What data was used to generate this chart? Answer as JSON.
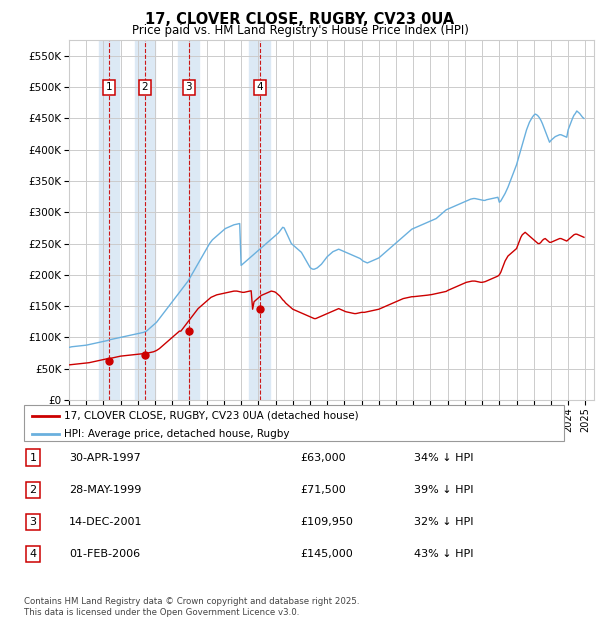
{
  "title": "17, CLOVER CLOSE, RUGBY, CV23 0UA",
  "subtitle": "Price paid vs. HM Land Registry's House Price Index (HPI)",
  "ylabel_ticks": [
    "£0",
    "£50K",
    "£100K",
    "£150K",
    "£200K",
    "£250K",
    "£300K",
    "£350K",
    "£400K",
    "£450K",
    "£500K",
    "£550K"
  ],
  "ytick_values": [
    0,
    50000,
    100000,
    150000,
    200000,
    250000,
    300000,
    350000,
    400000,
    450000,
    500000,
    550000
  ],
  "ylim": [
    0,
    575000
  ],
  "xlim_start": 1995.0,
  "xlim_end": 2025.5,
  "purchases": [
    {
      "label": "1",
      "date_str": "30-APR-1997",
      "year": 1997.33,
      "price": 63000,
      "pct": "34%",
      "dir": "↓"
    },
    {
      "label": "2",
      "date_str": "28-MAY-1999",
      "year": 1999.41,
      "price": 71500,
      "pct": "39%",
      "dir": "↓"
    },
    {
      "label": "3",
      "date_str": "14-DEC-2001",
      "year": 2001.95,
      "price": 109950,
      "pct": "32%",
      "dir": "↓"
    },
    {
      "label": "4",
      "date_str": "01-FEB-2006",
      "year": 2006.08,
      "price": 145000,
      "pct": "43%",
      "dir": "↓"
    }
  ],
  "hpi_color": "#6ab0de",
  "price_color": "#cc0000",
  "vline_color": "#cc0000",
  "vband_color": "#dce9f5",
  "box_edge_color": "#cc0000",
  "footnote": "Contains HM Land Registry data © Crown copyright and database right 2025.\nThis data is licensed under the Open Government Licence v3.0.",
  "legend_entries": [
    "17, CLOVER CLOSE, RUGBY, CV23 0UA (detached house)",
    "HPI: Average price, detached house, Rugby"
  ],
  "hpi_years": [
    1995.0,
    1995.083,
    1995.167,
    1995.25,
    1995.333,
    1995.417,
    1995.5,
    1995.583,
    1995.667,
    1995.75,
    1995.833,
    1995.917,
    1996.0,
    1996.083,
    1996.167,
    1996.25,
    1996.333,
    1996.417,
    1996.5,
    1996.583,
    1996.667,
    1996.75,
    1996.833,
    1996.917,
    1997.0,
    1997.083,
    1997.167,
    1997.25,
    1997.333,
    1997.417,
    1997.5,
    1997.583,
    1997.667,
    1997.75,
    1997.833,
    1997.917,
    1998.0,
    1998.083,
    1998.167,
    1998.25,
    1998.333,
    1998.417,
    1998.5,
    1998.583,
    1998.667,
    1998.75,
    1998.833,
    1998.917,
    1999.0,
    1999.083,
    1999.167,
    1999.25,
    1999.333,
    1999.417,
    1999.5,
    1999.583,
    1999.667,
    1999.75,
    1999.833,
    1999.917,
    2000.0,
    2000.083,
    2000.167,
    2000.25,
    2000.333,
    2000.417,
    2000.5,
    2000.583,
    2000.667,
    2000.75,
    2000.833,
    2000.917,
    2001.0,
    2001.083,
    2001.167,
    2001.25,
    2001.333,
    2001.417,
    2001.5,
    2001.583,
    2001.667,
    2001.75,
    2001.833,
    2001.917,
    2002.0,
    2002.083,
    2002.167,
    2002.25,
    2002.333,
    2002.417,
    2002.5,
    2002.583,
    2002.667,
    2002.75,
    2002.833,
    2002.917,
    2003.0,
    2003.083,
    2003.167,
    2003.25,
    2003.333,
    2003.417,
    2003.5,
    2003.583,
    2003.667,
    2003.75,
    2003.833,
    2003.917,
    2004.0,
    2004.083,
    2004.167,
    2004.25,
    2004.333,
    2004.417,
    2004.5,
    2004.583,
    2004.667,
    2004.75,
    2004.833,
    2004.917,
    2005.0,
    2005.083,
    2005.167,
    2005.25,
    2005.333,
    2005.417,
    2005.5,
    2005.583,
    2005.667,
    2005.75,
    2005.833,
    2005.917,
    2006.0,
    2006.083,
    2006.167,
    2006.25,
    2006.333,
    2006.417,
    2006.5,
    2006.583,
    2006.667,
    2006.75,
    2006.833,
    2006.917,
    2007.0,
    2007.083,
    2007.167,
    2007.25,
    2007.333,
    2007.417,
    2007.5,
    2007.583,
    2007.667,
    2007.75,
    2007.833,
    2007.917,
    2008.0,
    2008.083,
    2008.167,
    2008.25,
    2008.333,
    2008.417,
    2008.5,
    2008.583,
    2008.667,
    2008.75,
    2008.833,
    2008.917,
    2009.0,
    2009.083,
    2009.167,
    2009.25,
    2009.333,
    2009.417,
    2009.5,
    2009.583,
    2009.667,
    2009.75,
    2009.833,
    2009.917,
    2010.0,
    2010.083,
    2010.167,
    2010.25,
    2010.333,
    2010.417,
    2010.5,
    2010.583,
    2010.667,
    2010.75,
    2010.833,
    2010.917,
    2011.0,
    2011.083,
    2011.167,
    2011.25,
    2011.333,
    2011.417,
    2011.5,
    2011.583,
    2011.667,
    2011.75,
    2011.833,
    2011.917,
    2012.0,
    2012.083,
    2012.167,
    2012.25,
    2012.333,
    2012.417,
    2012.5,
    2012.583,
    2012.667,
    2012.75,
    2012.833,
    2012.917,
    2013.0,
    2013.083,
    2013.167,
    2013.25,
    2013.333,
    2013.417,
    2013.5,
    2013.583,
    2013.667,
    2013.75,
    2013.833,
    2013.917,
    2014.0,
    2014.083,
    2014.167,
    2014.25,
    2014.333,
    2014.417,
    2014.5,
    2014.583,
    2014.667,
    2014.75,
    2014.833,
    2014.917,
    2015.0,
    2015.083,
    2015.167,
    2015.25,
    2015.333,
    2015.417,
    2015.5,
    2015.583,
    2015.667,
    2015.75,
    2015.833,
    2015.917,
    2016.0,
    2016.083,
    2016.167,
    2016.25,
    2016.333,
    2016.417,
    2016.5,
    2016.583,
    2016.667,
    2016.75,
    2016.833,
    2016.917,
    2017.0,
    2017.083,
    2017.167,
    2017.25,
    2017.333,
    2017.417,
    2017.5,
    2017.583,
    2017.667,
    2017.75,
    2017.833,
    2017.917,
    2018.0,
    2018.083,
    2018.167,
    2018.25,
    2018.333,
    2018.417,
    2018.5,
    2018.583,
    2018.667,
    2018.75,
    2018.833,
    2018.917,
    2019.0,
    2019.083,
    2019.167,
    2019.25,
    2019.333,
    2019.417,
    2019.5,
    2019.583,
    2019.667,
    2019.75,
    2019.833,
    2019.917,
    2020.0,
    2020.083,
    2020.167,
    2020.25,
    2020.333,
    2020.417,
    2020.5,
    2020.583,
    2020.667,
    2020.75,
    2020.833,
    2020.917,
    2021.0,
    2021.083,
    2021.167,
    2021.25,
    2021.333,
    2021.417,
    2021.5,
    2021.583,
    2021.667,
    2021.75,
    2021.833,
    2021.917,
    2022.0,
    2022.083,
    2022.167,
    2022.25,
    2022.333,
    2022.417,
    2022.5,
    2022.583,
    2022.667,
    2022.75,
    2022.833,
    2022.917,
    2023.0,
    2023.083,
    2023.167,
    2023.25,
    2023.333,
    2023.417,
    2023.5,
    2023.583,
    2023.667,
    2023.75,
    2023.833,
    2023.917,
    2024.0,
    2024.083,
    2024.167,
    2024.25,
    2024.333,
    2024.417,
    2024.5,
    2024.583,
    2024.667,
    2024.75,
    2024.833,
    2024.917
  ],
  "hpi_values": [
    84000,
    84500,
    85000,
    85200,
    85500,
    85800,
    86000,
    86200,
    86500,
    86800,
    87000,
    87200,
    87500,
    88000,
    88500,
    89000,
    89500,
    90000,
    90500,
    91000,
    91500,
    92000,
    92500,
    93000,
    93500,
    94000,
    94500,
    95000,
    96000,
    96500,
    97000,
    97500,
    98000,
    98500,
    99000,
    99500,
    100000,
    100500,
    101000,
    101500,
    102000,
    102500,
    103000,
    103500,
    104000,
    104500,
    105000,
    105500,
    106000,
    106500,
    107000,
    107500,
    108000,
    109000,
    110000,
    112000,
    114000,
    116000,
    118000,
    120000,
    122000,
    124000,
    127000,
    130000,
    133000,
    136000,
    139000,
    142000,
    145000,
    148000,
    151000,
    154000,
    157000,
    160000,
    163000,
    166000,
    169000,
    172000,
    175000,
    178000,
    181000,
    184000,
    187000,
    190000,
    194000,
    198000,
    202000,
    206000,
    210000,
    214000,
    218000,
    222000,
    226000,
    230000,
    234000,
    238000,
    242000,
    246000,
    250000,
    253000,
    256000,
    258000,
    260000,
    262000,
    264000,
    266000,
    268000,
    270000,
    272000,
    274000,
    275000,
    276000,
    277000,
    278000,
    279000,
    280000,
    280500,
    281000,
    281500,
    282000,
    215000,
    217000,
    219000,
    221000,
    223000,
    225000,
    227000,
    229000,
    231000,
    233000,
    235000,
    237000,
    239000,
    241000,
    243000,
    245000,
    247000,
    249000,
    251000,
    253000,
    255000,
    257000,
    259000,
    261000,
    263000,
    265000,
    267000,
    270000,
    273000,
    276000,
    275000,
    270000,
    265000,
    260000,
    255000,
    250000,
    248000,
    246000,
    244000,
    242000,
    240000,
    238000,
    236000,
    232000,
    228000,
    224000,
    220000,
    216000,
    212000,
    210000,
    209000,
    209000,
    210000,
    211000,
    213000,
    215000,
    217000,
    220000,
    223000,
    226000,
    229000,
    231000,
    233000,
    235000,
    237000,
    238000,
    239000,
    240000,
    241000,
    240000,
    239000,
    238000,
    237000,
    236000,
    235000,
    234000,
    233000,
    232000,
    231000,
    230000,
    229000,
    228000,
    227000,
    226000,
    224000,
    222000,
    221000,
    220000,
    219000,
    220000,
    221000,
    222000,
    223000,
    224000,
    225000,
    226000,
    227000,
    229000,
    231000,
    233000,
    235000,
    237000,
    239000,
    241000,
    243000,
    245000,
    247000,
    249000,
    251000,
    253000,
    255000,
    257000,
    259000,
    261000,
    263000,
    265000,
    267000,
    269000,
    271000,
    273000,
    274000,
    275000,
    276000,
    277000,
    278000,
    279000,
    280000,
    281000,
    282000,
    283000,
    284000,
    285000,
    286000,
    287000,
    288000,
    289000,
    290000,
    292000,
    294000,
    296000,
    298000,
    300000,
    302000,
    304000,
    305000,
    306000,
    307000,
    308000,
    309000,
    310000,
    311000,
    312000,
    313000,
    314000,
    315000,
    316000,
    317000,
    318000,
    319000,
    320000,
    321000,
    321500,
    322000,
    322000,
    321500,
    321000,
    320500,
    320000,
    319500,
    319000,
    319000,
    320000,
    320500,
    321000,
    321500,
    322000,
    322500,
    323000,
    323500,
    324000,
    316000,
    318000,
    322000,
    326000,
    330000,
    335000,
    340000,
    346000,
    352000,
    358000,
    364000,
    370000,
    376000,
    384000,
    392000,
    400000,
    408000,
    416000,
    424000,
    432000,
    438000,
    444000,
    448000,
    452000,
    455000,
    457000,
    456000,
    454000,
    451000,
    447000,
    442000,
    436000,
    430000,
    424000,
    418000,
    412000,
    415000,
    417000,
    419000,
    421000,
    422000,
    423000,
    424000,
    424000,
    423000,
    422000,
    421000,
    420000,
    432000,
    438000,
    444000,
    450000,
    455000,
    458000,
    462000,
    460000,
    458000,
    455000,
    452000,
    450000
  ],
  "price_years": [
    1995.0,
    1995.083,
    1995.167,
    1995.25,
    1995.333,
    1995.417,
    1995.5,
    1995.583,
    1995.667,
    1995.75,
    1995.833,
    1995.917,
    1996.0,
    1996.083,
    1996.167,
    1996.25,
    1996.333,
    1996.417,
    1996.5,
    1996.583,
    1996.667,
    1996.75,
    1996.833,
    1996.917,
    1997.0,
    1997.083,
    1997.167,
    1997.25,
    1997.333,
    1997.417,
    1997.5,
    1997.583,
    1997.667,
    1997.75,
    1997.833,
    1997.917,
    1998.0,
    1998.083,
    1998.167,
    1998.25,
    1998.333,
    1998.417,
    1998.5,
    1998.583,
    1998.667,
    1998.75,
    1998.833,
    1998.917,
    1999.0,
    1999.083,
    1999.167,
    1999.25,
    1999.333,
    1999.417,
    1999.5,
    1999.583,
    1999.667,
    1999.75,
    1999.833,
    1999.917,
    2000.0,
    2000.083,
    2000.167,
    2000.25,
    2000.333,
    2000.417,
    2000.5,
    2000.583,
    2000.667,
    2000.75,
    2000.833,
    2000.917,
    2001.0,
    2001.083,
    2001.167,
    2001.25,
    2001.333,
    2001.417,
    2001.5,
    2001.583,
    2001.667,
    2001.75,
    2001.833,
    2001.917,
    2002.0,
    2002.083,
    2002.167,
    2002.25,
    2002.333,
    2002.417,
    2002.5,
    2002.583,
    2002.667,
    2002.75,
    2002.833,
    2002.917,
    2003.0,
    2003.083,
    2003.167,
    2003.25,
    2003.333,
    2003.417,
    2003.5,
    2003.583,
    2003.667,
    2003.75,
    2003.833,
    2003.917,
    2004.0,
    2004.083,
    2004.167,
    2004.25,
    2004.333,
    2004.417,
    2004.5,
    2004.583,
    2004.667,
    2004.75,
    2004.833,
    2004.917,
    2005.0,
    2005.083,
    2005.167,
    2005.25,
    2005.333,
    2005.417,
    2005.5,
    2005.583,
    2005.667,
    2005.75,
    2005.833,
    2005.917,
    2006.0,
    2006.083,
    2006.167,
    2006.25,
    2006.333,
    2006.417,
    2006.5,
    2006.583,
    2006.667,
    2006.75,
    2006.833,
    2006.917,
    2007.0,
    2007.083,
    2007.167,
    2007.25,
    2007.333,
    2007.417,
    2007.5,
    2007.583,
    2007.667,
    2007.75,
    2007.833,
    2007.917,
    2008.0,
    2008.083,
    2008.167,
    2008.25,
    2008.333,
    2008.417,
    2008.5,
    2008.583,
    2008.667,
    2008.75,
    2008.833,
    2008.917,
    2009.0,
    2009.083,
    2009.167,
    2009.25,
    2009.333,
    2009.417,
    2009.5,
    2009.583,
    2009.667,
    2009.75,
    2009.833,
    2009.917,
    2010.0,
    2010.083,
    2010.167,
    2010.25,
    2010.333,
    2010.417,
    2010.5,
    2010.583,
    2010.667,
    2010.75,
    2010.833,
    2010.917,
    2011.0,
    2011.083,
    2011.167,
    2011.25,
    2011.333,
    2011.417,
    2011.5,
    2011.583,
    2011.667,
    2011.75,
    2011.833,
    2011.917,
    2012.0,
    2012.083,
    2012.167,
    2012.25,
    2012.333,
    2012.417,
    2012.5,
    2012.583,
    2012.667,
    2012.75,
    2012.833,
    2012.917,
    2013.0,
    2013.083,
    2013.167,
    2013.25,
    2013.333,
    2013.417,
    2013.5,
    2013.583,
    2013.667,
    2013.75,
    2013.833,
    2013.917,
    2014.0,
    2014.083,
    2014.167,
    2014.25,
    2014.333,
    2014.417,
    2014.5,
    2014.583,
    2014.667,
    2014.75,
    2014.833,
    2014.917,
    2015.0,
    2015.083,
    2015.167,
    2015.25,
    2015.333,
    2015.417,
    2015.5,
    2015.583,
    2015.667,
    2015.75,
    2015.833,
    2015.917,
    2016.0,
    2016.083,
    2016.167,
    2016.25,
    2016.333,
    2016.417,
    2016.5,
    2016.583,
    2016.667,
    2016.75,
    2016.833,
    2016.917,
    2017.0,
    2017.083,
    2017.167,
    2017.25,
    2017.333,
    2017.417,
    2017.5,
    2017.583,
    2017.667,
    2017.75,
    2017.833,
    2017.917,
    2018.0,
    2018.083,
    2018.167,
    2018.25,
    2018.333,
    2018.417,
    2018.5,
    2018.583,
    2018.667,
    2018.75,
    2018.833,
    2018.917,
    2019.0,
    2019.083,
    2019.167,
    2019.25,
    2019.333,
    2019.417,
    2019.5,
    2019.583,
    2019.667,
    2019.75,
    2019.833,
    2019.917,
    2020.0,
    2020.083,
    2020.167,
    2020.25,
    2020.333,
    2020.417,
    2020.5,
    2020.583,
    2020.667,
    2020.75,
    2020.833,
    2020.917,
    2021.0,
    2021.083,
    2021.167,
    2021.25,
    2021.333,
    2021.417,
    2021.5,
    2021.583,
    2021.667,
    2021.75,
    2021.833,
    2021.917,
    2022.0,
    2022.083,
    2022.167,
    2022.25,
    2022.333,
    2022.417,
    2022.5,
    2022.583,
    2022.667,
    2022.75,
    2022.833,
    2022.917,
    2023.0,
    2023.083,
    2023.167,
    2023.25,
    2023.333,
    2023.417,
    2023.5,
    2023.583,
    2023.667,
    2023.75,
    2023.833,
    2023.917,
    2024.0,
    2024.083,
    2024.167,
    2024.25,
    2024.333,
    2024.417,
    2024.5,
    2024.583,
    2024.667,
    2024.75,
    2024.833,
    2024.917
  ],
  "price_values": [
    56000,
    56200,
    56500,
    56800,
    57000,
    57200,
    57500,
    57800,
    58000,
    58200,
    58500,
    58800,
    59000,
    59200,
    59500,
    60000,
    60500,
    61000,
    61500,
    62000,
    62500,
    63000,
    63500,
    64000,
    64500,
    65000,
    65500,
    66000,
    63000,
    66500,
    67000,
    67500,
    68000,
    68500,
    69000,
    69500,
    70000,
    70200,
    70500,
    70800,
    71000,
    71200,
    71500,
    71800,
    72000,
    72200,
    72500,
    72800,
    73000,
    73200,
    73500,
    73800,
    71500,
    74000,
    74500,
    75000,
    75500,
    76000,
    76500,
    77000,
    78000,
    79000,
    80500,
    82000,
    84000,
    86000,
    88000,
    90000,
    92000,
    94000,
    96000,
    98000,
    100000,
    102000,
    104000,
    106000,
    108000,
    110000,
    109950,
    113000,
    116000,
    119000,
    122000,
    125000,
    128000,
    131000,
    134000,
    137000,
    140000,
    143000,
    146000,
    148000,
    150000,
    152000,
    154000,
    156000,
    158000,
    160000,
    162000,
    164000,
    165000,
    166000,
    167000,
    168000,
    168500,
    169000,
    169500,
    170000,
    170500,
    171000,
    171500,
    172000,
    172500,
    173000,
    173500,
    174000,
    174000,
    174000,
    173500,
    173000,
    172500,
    172000,
    172000,
    172500,
    173000,
    173500,
    174000,
    174500,
    145000,
    157000,
    159000,
    161000,
    163000,
    165000,
    167000,
    168000,
    169000,
    170000,
    171000,
    172000,
    173000,
    174000,
    173500,
    173000,
    172000,
    170000,
    168000,
    166000,
    163000,
    160000,
    158000,
    155000,
    153000,
    151000,
    149000,
    147000,
    145000,
    144000,
    143000,
    142000,
    141000,
    140000,
    139000,
    138000,
    137000,
    136000,
    135000,
    134000,
    133000,
    132000,
    131000,
    130000,
    130000,
    131000,
    132000,
    133000,
    134000,
    135000,
    136000,
    137000,
    138000,
    139000,
    140000,
    141000,
    142000,
    143000,
    144000,
    145000,
    146000,
    145000,
    144000,
    143000,
    142000,
    141000,
    140500,
    140000,
    139500,
    139000,
    138500,
    138000,
    138000,
    138500,
    139000,
    139500,
    140000,
    140000,
    140000,
    140500,
    141000,
    141500,
    142000,
    142500,
    143000,
    143500,
    144000,
    144500,
    145000,
    146000,
    147000,
    148000,
    149000,
    150000,
    151000,
    152000,
    153000,
    154000,
    155000,
    156000,
    157000,
    158000,
    159000,
    160000,
    161000,
    162000,
    162500,
    163000,
    163500,
    164000,
    164500,
    165000,
    165000,
    165200,
    165500,
    165800,
    166000,
    166200,
    166500,
    166800,
    167000,
    167200,
    167500,
    167800,
    168000,
    168500,
    169000,
    169500,
    170000,
    170500,
    171000,
    171500,
    172000,
    172500,
    173000,
    173500,
    175000,
    176000,
    177000,
    178000,
    179000,
    180000,
    181000,
    182000,
    183000,
    184000,
    185000,
    186000,
    187000,
    188000,
    188500,
    189000,
    189500,
    190000,
    190000,
    190000,
    189500,
    189000,
    188500,
    188000,
    188000,
    188500,
    189000,
    190000,
    191000,
    192000,
    193000,
    194000,
    195000,
    196000,
    197000,
    198000,
    200000,
    204000,
    210000,
    216000,
    222000,
    226000,
    230000,
    232000,
    234000,
    236000,
    238000,
    240000,
    242000,
    248000,
    254000,
    260000,
    264000,
    266000,
    268000,
    266000,
    264000,
    262000,
    260000,
    258000,
    256000,
    254000,
    252000,
    250000,
    250000,
    252000,
    255000,
    257000,
    258000,
    256000,
    254000,
    252000,
    252000,
    253000,
    254000,
    255000,
    256000,
    257000,
    258000,
    258000,
    257000,
    256000,
    255000,
    254000,
    256000,
    258000,
    260000,
    262000,
    264000,
    265000,
    265000,
    264000,
    263000,
    262000,
    261000,
    260000
  ]
}
